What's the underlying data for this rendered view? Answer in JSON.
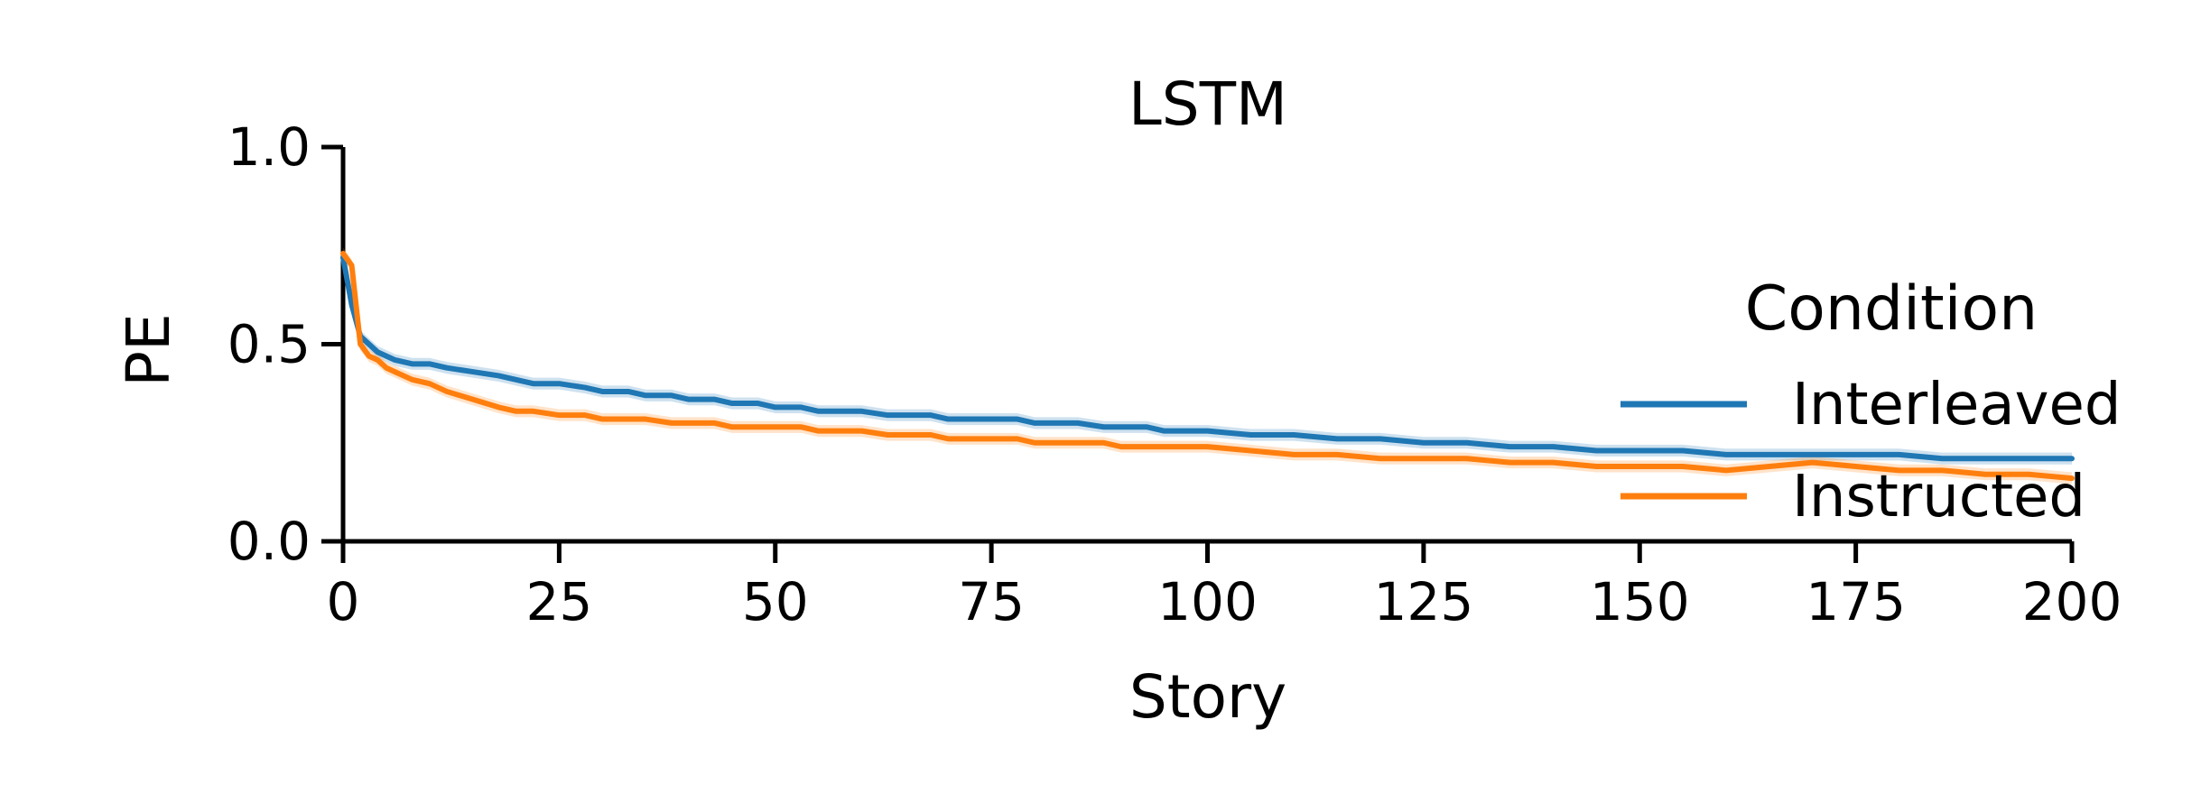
{
  "chart_data": {
    "type": "line",
    "title": "LSTM",
    "xlabel": "Story",
    "ylabel": "PE",
    "xlim": [
      0,
      200
    ],
    "ylim": [
      0.0,
      1.0
    ],
    "xticks": [
      "0",
      "25",
      "50",
      "75",
      "100",
      "125",
      "150",
      "175",
      "200"
    ],
    "yticks": [
      "0.0",
      "0.5",
      "1.0"
    ],
    "grid": false,
    "legend": {
      "title": "Condition",
      "placement": "right"
    },
    "series": [
      {
        "name": "Interleaved",
        "color": "#1f77b4",
        "x": [
          0,
          1,
          2,
          3,
          4,
          5,
          6,
          8,
          10,
          12,
          15,
          18,
          20,
          22,
          25,
          28,
          30,
          33,
          35,
          38,
          40,
          43,
          45,
          48,
          50,
          53,
          55,
          58,
          60,
          63,
          65,
          68,
          70,
          73,
          75,
          78,
          80,
          83,
          85,
          88,
          90,
          93,
          95,
          98,
          100,
          105,
          110,
          115,
          120,
          125,
          130,
          135,
          140,
          145,
          150,
          155,
          160,
          165,
          170,
          175,
          180,
          185,
          190,
          195,
          200
        ],
        "y": [
          0.72,
          0.6,
          0.52,
          0.5,
          0.48,
          0.47,
          0.46,
          0.45,
          0.45,
          0.44,
          0.43,
          0.42,
          0.41,
          0.4,
          0.4,
          0.39,
          0.38,
          0.38,
          0.37,
          0.37,
          0.36,
          0.36,
          0.35,
          0.35,
          0.34,
          0.34,
          0.33,
          0.33,
          0.33,
          0.32,
          0.32,
          0.32,
          0.31,
          0.31,
          0.31,
          0.31,
          0.3,
          0.3,
          0.3,
          0.29,
          0.29,
          0.29,
          0.28,
          0.28,
          0.28,
          0.27,
          0.27,
          0.26,
          0.26,
          0.25,
          0.25,
          0.24,
          0.24,
          0.23,
          0.23,
          0.23,
          0.22,
          0.22,
          0.22,
          0.22,
          0.22,
          0.21,
          0.21,
          0.21,
          0.21
        ]
      },
      {
        "name": "Instructed",
        "color": "#ff7f0e",
        "x": [
          0,
          1,
          2,
          3,
          4,
          5,
          6,
          8,
          10,
          12,
          15,
          18,
          20,
          22,
          25,
          28,
          30,
          33,
          35,
          38,
          40,
          43,
          45,
          48,
          50,
          53,
          55,
          58,
          60,
          63,
          65,
          68,
          70,
          73,
          75,
          78,
          80,
          83,
          85,
          88,
          90,
          93,
          95,
          98,
          100,
          105,
          110,
          115,
          120,
          125,
          130,
          135,
          140,
          145,
          150,
          155,
          160,
          165,
          170,
          175,
          180,
          185,
          190,
          195,
          200
        ],
        "y": [
          0.73,
          0.7,
          0.5,
          0.47,
          0.46,
          0.44,
          0.43,
          0.41,
          0.4,
          0.38,
          0.36,
          0.34,
          0.33,
          0.33,
          0.32,
          0.32,
          0.31,
          0.31,
          0.31,
          0.3,
          0.3,
          0.3,
          0.29,
          0.29,
          0.29,
          0.29,
          0.28,
          0.28,
          0.28,
          0.27,
          0.27,
          0.27,
          0.26,
          0.26,
          0.26,
          0.26,
          0.25,
          0.25,
          0.25,
          0.25,
          0.24,
          0.24,
          0.24,
          0.24,
          0.24,
          0.23,
          0.22,
          0.22,
          0.21,
          0.21,
          0.21,
          0.2,
          0.2,
          0.19,
          0.19,
          0.19,
          0.18,
          0.19,
          0.2,
          0.19,
          0.18,
          0.18,
          0.17,
          0.17,
          0.16
        ]
      }
    ]
  }
}
